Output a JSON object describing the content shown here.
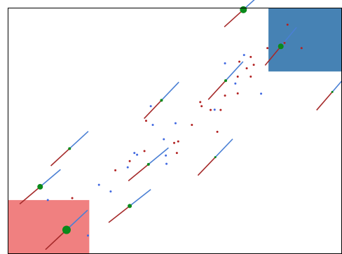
{
  "chart_data": {
    "type": "scatter",
    "xlim": [
      0,
      1
    ],
    "ylim": [
      0,
      1
    ],
    "grid": false,
    "legend": "none",
    "colors": {
      "red_box": "#f08080",
      "blue_box": "#4682b4",
      "red_segment": "#a52a2a",
      "blue_segment": "#4a7fd4",
      "red_point": "#b22222",
      "blue_point": "#4169e1",
      "center_point": "#0a8a1a",
      "frame": "#000000"
    },
    "boxes": [
      {
        "name": "red-box",
        "color": "red_box",
        "x0": 0.0,
        "x1": 0.244,
        "y0": 0.0,
        "y1": 0.219
      },
      {
        "name": "blue-box",
        "color": "blue_box",
        "x0": 0.78,
        "x1": 1.0,
        "y0": 0.741,
        "y1": 1.0
      }
    ],
    "segments": [
      {
        "cx": 0.176,
        "cy": 0.098,
        "dx": 0.063,
        "dy": 0.08,
        "marker": 6
      },
      {
        "cx": 0.097,
        "cy": 0.273,
        "dx": 0.061,
        "dy": 0.07,
        "marker": 4
      },
      {
        "cx": 0.185,
        "cy": 0.428,
        "dx": 0.056,
        "dy": 0.07,
        "marker": 2
      },
      {
        "cx": 0.365,
        "cy": 0.195,
        "dx": 0.063,
        "dy": 0.067,
        "marker": 3
      },
      {
        "cx": 0.421,
        "cy": 0.364,
        "dx": 0.06,
        "dy": 0.067,
        "marker": 2
      },
      {
        "cx": 0.46,
        "cy": 0.624,
        "dx": 0.052,
        "dy": 0.074,
        "marker": 2
      },
      {
        "cx": 0.621,
        "cy": 0.393,
        "dx": 0.052,
        "dy": 0.074,
        "marker": 1.5
      },
      {
        "cx": 0.652,
        "cy": 0.704,
        "dx": 0.052,
        "dy": 0.077,
        "marker": 2
      },
      {
        "cx": 0.705,
        "cy": 0.992,
        "dx": 0.057,
        "dy": 0.07,
        "marker": 5
      },
      {
        "cx": 0.817,
        "cy": 0.843,
        "dx": 0.047,
        "dy": 0.077,
        "marker": 4
      },
      {
        "cx": 0.971,
        "cy": 0.658,
        "dx": 0.047,
        "dy": 0.074,
        "marker": 1.5
      }
    ],
    "red_points": [
      [
        0.193,
        0.227
      ],
      [
        0.322,
        0.34
      ],
      [
        0.365,
        0.377
      ],
      [
        0.409,
        0.418
      ],
      [
        0.506,
        0.41
      ],
      [
        0.51,
        0.457
      ],
      [
        0.551,
        0.524
      ],
      [
        0.58,
        0.6
      ],
      [
        0.576,
        0.617
      ],
      [
        0.607,
        0.585
      ],
      [
        0.637,
        0.585
      ],
      [
        0.627,
        0.496
      ],
      [
        0.65,
        0.643
      ],
      [
        0.688,
        0.652
      ],
      [
        0.688,
        0.72
      ],
      [
        0.715,
        0.754
      ],
      [
        0.727,
        0.72
      ],
      [
        0.736,
        0.768
      ],
      [
        0.693,
        0.781
      ],
      [
        0.727,
        0.8
      ],
      [
        0.777,
        0.836
      ],
      [
        0.828,
        0.857
      ],
      [
        0.879,
        0.836
      ],
      [
        0.837,
        0.931
      ],
      [
        0.414,
        0.541
      ],
      [
        0.498,
        0.451
      ]
    ],
    "blue_points": [
      [
        0.12,
        0.219
      ],
      [
        0.308,
        0.254
      ],
      [
        0.273,
        0.281
      ],
      [
        0.359,
        0.352
      ],
      [
        0.379,
        0.41
      ],
      [
        0.387,
        0.403
      ],
      [
        0.428,
        0.6
      ],
      [
        0.434,
        0.524
      ],
      [
        0.467,
        0.466
      ],
      [
        0.475,
        0.366
      ],
      [
        0.502,
        0.531
      ],
      [
        0.619,
        0.586
      ],
      [
        0.65,
        0.774
      ],
      [
        0.681,
        0.692
      ],
      [
        0.707,
        0.808
      ],
      [
        0.758,
        0.651
      ],
      [
        0.24,
        0.075
      ],
      [
        0.473,
        0.4
      ]
    ]
  }
}
